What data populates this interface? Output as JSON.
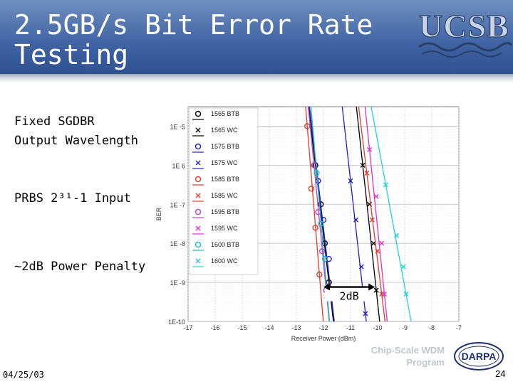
{
  "slide": {
    "title_line1": "2.5GB/s Bit Error Rate",
    "title_line2": "Testing",
    "bullets": {
      "b1_line1": "Fixed SGDBR",
      "b1_line2": "Output Wavelength",
      "b2": "PRBS 2³¹-1 Input",
      "b3": "~2dB Power Penalty"
    },
    "logo_text": "UCSB",
    "footer": {
      "date": "04/25/03",
      "page": "24",
      "program_line1": "Chip-Scale WDM",
      "program_line2": "Program",
      "darpa": "DARPA"
    }
  },
  "chart_data": {
    "type": "line",
    "xlabel": "Receiver Power (dBm)",
    "ylabel": "BER",
    "xlim": [
      -17,
      -7
    ],
    "xticks": [
      "-17",
      "-16",
      "-15",
      "-14",
      "-13",
      "-12",
      "-11",
      "-10",
      "-9",
      "-8",
      "-7"
    ],
    "ylim_log10": [
      -10,
      -4.5
    ],
    "yticks": [
      {
        "label": "1E-10",
        "exp": -10
      },
      {
        "label": "1E -9",
        "exp": -9
      },
      {
        "label": "1E -8",
        "exp": -8
      },
      {
        "label": "1E -7",
        "exp": -7
      },
      {
        "label": "1E 6",
        "exp": -6
      },
      {
        "label": "1E -5",
        "exp": -5
      }
    ],
    "grid": true,
    "legend_position": "top-left",
    "annotation": {
      "text": "2dB",
      "x_from": -12.0,
      "x_to": -10.1,
      "ber_exp": -9.3
    },
    "series": [
      {
        "name": "1565 BTB",
        "marker": "o",
        "color": "#000000",
        "x": [
          -12.3,
          -12.1,
          -11.95,
          -11.8
        ],
        "ber_exp": [
          -6.0,
          -7.0,
          -8.0,
          -9.0
        ]
      },
      {
        "name": "1565 WC",
        "marker": "x",
        "color": "#000000",
        "x": [
          -10.55,
          -10.3,
          -10.15,
          -10.05
        ],
        "ber_exp": [
          -6.0,
          -7.0,
          -8.0,
          -9.2
        ]
      },
      {
        "name": "1575 BTB",
        "marker": "o",
        "color": "#1f1fcf",
        "x": [
          -12.2,
          -12.0,
          -11.8,
          -11.7
        ],
        "ber_exp": [
          -6.4,
          -7.4,
          -8.4,
          -9.4
        ]
      },
      {
        "name": "1575 WC",
        "marker": "x",
        "color": "#1f1fcf",
        "x": [
          -11.0,
          -10.8,
          -10.6,
          -10.45
        ],
        "ber_exp": [
          -6.4,
          -7.4,
          -8.6,
          -9.8
        ]
      },
      {
        "name": "1585 BTB",
        "marker": "o",
        "color": "#e23b2a",
        "x": [
          -12.6,
          -12.45,
          -12.3,
          -12.15
        ],
        "ber_exp": [
          -5.0,
          -6.6,
          -7.6,
          -8.8
        ]
      },
      {
        "name": "1585 WC",
        "marker": "x",
        "color": "#e23b2a",
        "x": [
          -10.4,
          -10.2,
          -10.0,
          -9.85
        ],
        "ber_exp": [
          -6.2,
          -7.4,
          -8.2,
          -9.3
        ]
      },
      {
        "name": "1595 BTB",
        "marker": "o",
        "color": "#c040c0",
        "x": [
          -12.35,
          -12.2,
          -12.05,
          -11.9
        ],
        "ber_exp": [
          -6.0,
          -7.2,
          -8.2,
          -9.2
        ]
      },
      {
        "name": "1595 WC",
        "marker": "x",
        "color": "#e030d0",
        "x": [
          -10.3,
          -10.05,
          -9.85,
          -9.75
        ],
        "ber_exp": [
          -5.6,
          -6.8,
          -8.0,
          -9.3
        ]
      },
      {
        "name": "1600 BTB",
        "marker": "o",
        "color": "#20b8c8",
        "x": [
          -12.25,
          -12.1,
          -11.95,
          -11.85
        ],
        "ber_exp": [
          -6.2,
          -7.5,
          -8.4,
          -9.4
        ]
      },
      {
        "name": "1600 WC",
        "marker": "x",
        "color": "#19d4dc",
        "x": [
          -9.7,
          -9.3,
          -9.05,
          -8.95
        ],
        "ber_exp": [
          -6.5,
          -7.8,
          -8.6,
          -9.3
        ]
      }
    ]
  }
}
